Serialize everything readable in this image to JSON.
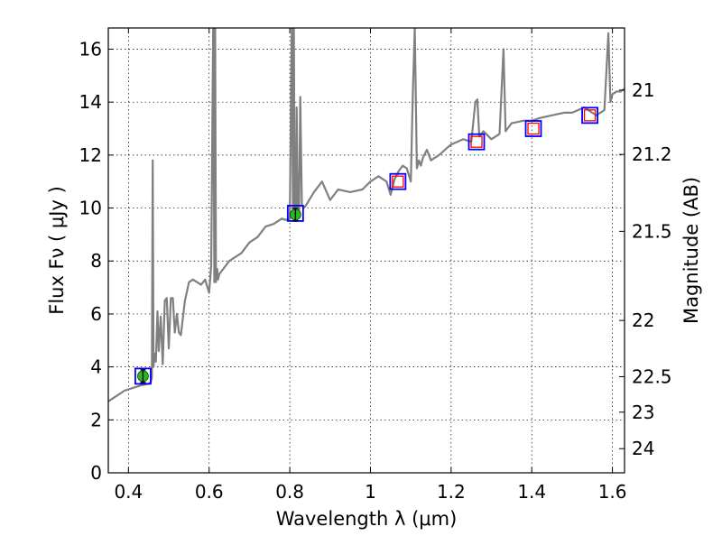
{
  "chart_data": {
    "type": "line",
    "xlabel": "Wavelength  λ (μm)",
    "ylabel": "Flux  Fν  ( μJy )",
    "y2label": "Magnitude (AB)",
    "xlim": [
      0.35,
      1.63
    ],
    "ylim": [
      0,
      16.8
    ],
    "grid": true,
    "x_ticks": [
      {
        "value": 0.4,
        "label": "0.4"
      },
      {
        "value": 0.6,
        "label": "0.6"
      },
      {
        "value": 0.8,
        "label": "0.8"
      },
      {
        "value": 1.0,
        "label": "1"
      },
      {
        "value": 1.2,
        "label": "1.2"
      },
      {
        "value": 1.4,
        "label": "1.4"
      },
      {
        "value": 1.6,
        "label": "1.6"
      }
    ],
    "y_ticks": [
      {
        "value": 0,
        "label": "0"
      },
      {
        "value": 2,
        "label": "2"
      },
      {
        "value": 4,
        "label": "4"
      },
      {
        "value": 6,
        "label": "6"
      },
      {
        "value": 8,
        "label": "8"
      },
      {
        "value": 10,
        "label": "10"
      },
      {
        "value": 12,
        "label": "12"
      },
      {
        "value": 14,
        "label": "14"
      },
      {
        "value": 16,
        "label": "16"
      }
    ],
    "y2_ticks": [
      {
        "value": 21,
        "label": "21"
      },
      {
        "value": 21.2,
        "label": "21.2"
      },
      {
        "value": 21.5,
        "label": "21.5"
      },
      {
        "value": 22,
        "label": "22"
      },
      {
        "value": 22.5,
        "label": "22.5"
      },
      {
        "value": 23,
        "label": "23"
      },
      {
        "value": 24,
        "label": "24"
      }
    ],
    "series": [
      {
        "kind": "model-spectrum",
        "color": "#808080",
        "x": [
          0.35,
          0.37,
          0.39,
          0.41,
          0.43,
          0.445,
          0.455,
          0.458,
          0.46,
          0.462,
          0.465,
          0.468,
          0.472,
          0.475,
          0.48,
          0.485,
          0.49,
          0.495,
          0.5,
          0.505,
          0.51,
          0.515,
          0.52,
          0.525,
          0.53,
          0.54,
          0.55,
          0.56,
          0.57,
          0.58,
          0.59,
          0.6,
          0.605,
          0.61,
          0.613,
          0.615,
          0.617,
          0.62,
          0.622,
          0.625,
          0.63,
          0.64,
          0.65,
          0.66,
          0.67,
          0.68,
          0.7,
          0.72,
          0.74,
          0.76,
          0.78,
          0.79,
          0.8,
          0.805,
          0.808,
          0.81,
          0.812,
          0.815,
          0.817,
          0.82,
          0.823,
          0.826,
          0.83,
          0.835,
          0.84,
          0.86,
          0.88,
          0.9,
          0.92,
          0.95,
          0.98,
          1.0,
          1.02,
          1.04,
          1.05,
          1.06,
          1.07,
          1.08,
          1.09,
          1.1,
          1.105,
          1.11,
          1.115,
          1.12,
          1.125,
          1.13,
          1.14,
          1.15,
          1.17,
          1.2,
          1.23,
          1.25,
          1.26,
          1.265,
          1.27,
          1.28,
          1.3,
          1.32,
          1.33,
          1.335,
          1.34,
          1.35,
          1.38,
          1.4,
          1.42,
          1.45,
          1.48,
          1.5,
          1.53,
          1.55,
          1.56,
          1.58,
          1.59,
          1.595,
          1.6,
          1.61,
          1.62,
          1.63
        ],
        "y": [
          2.7,
          2.9,
          3.1,
          3.2,
          3.3,
          3.35,
          3.4,
          3.6,
          11.8,
          4.0,
          4.5,
          4.2,
          6.1,
          4.6,
          5.9,
          4.1,
          6.5,
          6.6,
          4.7,
          6.6,
          6.6,
          5.3,
          6.0,
          5.3,
          5.2,
          6.5,
          7.2,
          7.3,
          7.2,
          7.1,
          7.3,
          6.8,
          7.8,
          16.8,
          7.2,
          16.8,
          7.2,
          7.7,
          7.3,
          7.5,
          7.6,
          7.8,
          8.0,
          8.1,
          8.2,
          8.3,
          8.7,
          8.9,
          9.3,
          9.4,
          9.6,
          9.55,
          9.6,
          16.8,
          9.7,
          16.8,
          9.8,
          9.7,
          13.8,
          9.9,
          9.85,
          14.2,
          10.1,
          10.0,
          10.1,
          10.6,
          11.0,
          10.3,
          10.7,
          10.6,
          10.7,
          11.0,
          11.2,
          11.0,
          10.5,
          11.1,
          11.4,
          11.6,
          11.5,
          11.0,
          14.3,
          16.8,
          11.5,
          11.8,
          11.6,
          11.9,
          12.2,
          11.8,
          12.0,
          12.4,
          12.6,
          12.5,
          14.0,
          14.1,
          12.7,
          12.9,
          12.6,
          12.8,
          16.0,
          12.9,
          13.0,
          13.2,
          13.3,
          13.3,
          13.4,
          13.5,
          13.6,
          13.6,
          13.8,
          13.6,
          13.5,
          13.7,
          16.6,
          14.0,
          14.3,
          14.4,
          14.4,
          14.5
        ]
      }
    ],
    "observed_points": [
      {
        "x": 0.436,
        "y": 3.65,
        "fill": "#22bb22"
      },
      {
        "x": 0.814,
        "y": 9.75,
        "fill": "#22bb22"
      },
      {
        "x": 1.068,
        "y": 11.0,
        "fill": "none"
      },
      {
        "x": 1.263,
        "y": 12.5,
        "fill": "none"
      },
      {
        "x": 1.404,
        "y": 13.0,
        "fill": "none"
      },
      {
        "x": 1.544,
        "y": 13.5,
        "fill": "none"
      }
    ],
    "model_points": [
      {
        "x": 0.436,
        "y": 3.65
      },
      {
        "x": 0.814,
        "y": 9.8
      },
      {
        "x": 1.068,
        "y": 11.0
      },
      {
        "x": 1.263,
        "y": 12.5
      },
      {
        "x": 1.404,
        "y": 13.0
      },
      {
        "x": 1.544,
        "y": 13.5
      }
    ],
    "colors": {
      "spectrum": "#808080",
      "model_box": "#0000ff",
      "observed_box": "#ff0000",
      "detected_fill": "#22bb22",
      "grid": "#000000"
    }
  }
}
